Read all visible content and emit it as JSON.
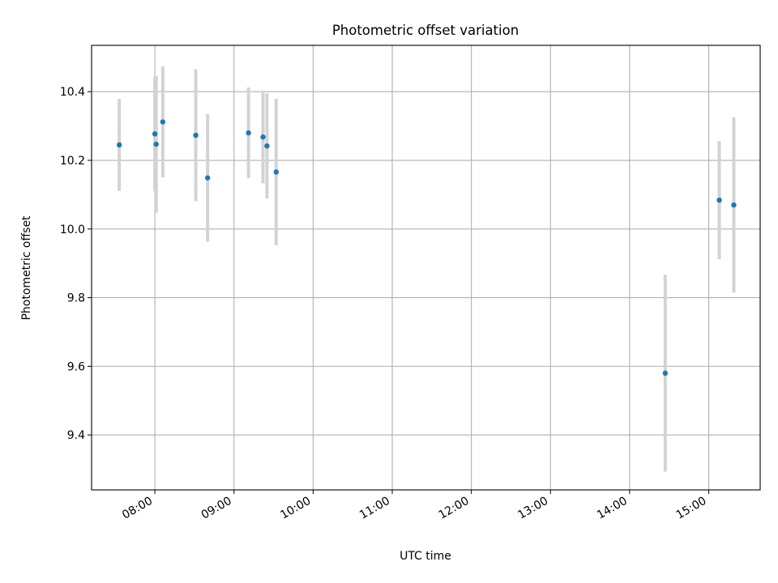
{
  "chart_data": {
    "type": "scatter",
    "title": "Photometric offset variation",
    "xlabel": "UTC time",
    "ylabel": "Photometric offset",
    "x_axis": "time",
    "xlim": [
      "07:12",
      "15:39"
    ],
    "ylim": [
      9.24,
      10.535
    ],
    "xticks": [
      "08:00",
      "09:00",
      "10:00",
      "11:00",
      "12:00",
      "13:00",
      "14:00",
      "15:00"
    ],
    "yticks": [
      9.4,
      9.6,
      9.8,
      10.0,
      10.2,
      10.4
    ],
    "ytick_labels": [
      "9.4",
      "9.6",
      "9.8",
      "10.0",
      "10.2",
      "10.4"
    ],
    "grid": true,
    "colors": {
      "point": "#1f77b4",
      "errorbar": "#d3d3d3"
    },
    "points": [
      {
        "x": "07:33",
        "y": 10.245,
        "err": 0.134
      },
      {
        "x": "08:00",
        "y": 10.277,
        "err": 0.167
      },
      {
        "x": "08:01",
        "y": 10.247,
        "err": 0.199
      },
      {
        "x": "08:06",
        "y": 10.312,
        "err": 0.162
      },
      {
        "x": "08:31",
        "y": 10.273,
        "err": 0.192
      },
      {
        "x": "08:40",
        "y": 10.149,
        "err": 0.186
      },
      {
        "x": "09:11",
        "y": 10.28,
        "err": 0.132
      },
      {
        "x": "09:22",
        "y": 10.268,
        "err": 0.135
      },
      {
        "x": "09:25",
        "y": 10.242,
        "err": 0.153
      },
      {
        "x": "09:32",
        "y": 10.166,
        "err": 0.213
      },
      {
        "x": "14:27",
        "y": 9.58,
        "err": 0.287
      },
      {
        "x": "15:08",
        "y": 10.084,
        "err": 0.172
      },
      {
        "x": "15:19",
        "y": 10.07,
        "err": 0.255
      }
    ]
  }
}
